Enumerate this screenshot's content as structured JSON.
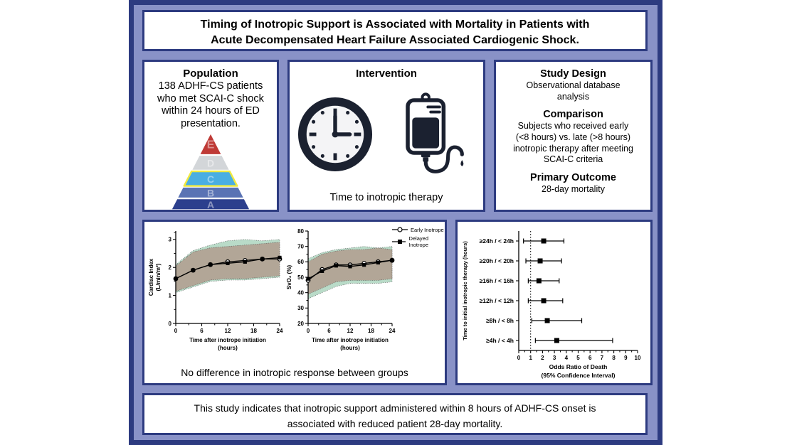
{
  "colors": {
    "background": "#8992c7",
    "border_navy": "#2d3b80",
    "panel_bg": "#ffffff",
    "band_green": "#b9dbc8",
    "band_tan": "#b19e8f",
    "icon_dark": "#1b2130",
    "pyramid_highlight": "#f1e93f"
  },
  "header": {
    "title": "Timing of Inotropic Support is Associated with Mortality in Patients with\nAcute Decompensated Heart Failure Associated Cardiogenic Shock."
  },
  "population": {
    "heading": "Population",
    "body": "138 ADHF-CS patients\nwho met SCAI-C shock\nwithin 24 hours of ED\npresentation.",
    "pyramid_levels": [
      {
        "label": "E",
        "color": "#bf3a36",
        "highlighted": false
      },
      {
        "label": "D",
        "color": "#d3d6d9",
        "highlighted": false
      },
      {
        "label": "C",
        "color": "#4aaee2",
        "highlighted": true
      },
      {
        "label": "B",
        "color": "#5a73b4",
        "highlighted": false
      },
      {
        "label": "A",
        "color": "#2c3f8d",
        "highlighted": false
      }
    ]
  },
  "intervention": {
    "heading": "Intervention",
    "caption": "Time to inotropic therapy",
    "icons": [
      "clock-icon",
      "iv-bag-icon"
    ]
  },
  "study": {
    "sections": [
      {
        "heading": "Study Design",
        "body": "Observational database\nanalysis"
      },
      {
        "heading": "Comparison",
        "body": "Subjects  who received  early\n(<8 hours) vs. late (>8 hours)\ninotropic therapy after meeting\nSCAI-C criteria"
      },
      {
        "heading": "Primary Outcome",
        "body": "28-day mortality"
      }
    ]
  },
  "legend": {
    "items": [
      {
        "label": "Early Inotrope",
        "marker": "circle-open"
      },
      {
        "label": "Delayed Inotrope",
        "marker": "square-filled"
      }
    ]
  },
  "charts_caption": "No difference in inotropic response between groups",
  "chart_data": [
    {
      "type": "line",
      "name": "cardiac-index",
      "xlabel_lines": [
        "Time after inotrope initiation",
        "(hours)"
      ],
      "ylabel_lines": [
        "Cardiac Index",
        "(L/min/m²)"
      ],
      "xlim": [
        0,
        24
      ],
      "ylim": [
        0,
        3.3
      ],
      "xticks": [
        0,
        6,
        12,
        18,
        24
      ],
      "xminor": [
        3,
        9,
        15,
        21
      ],
      "yticks": [
        0,
        1,
        2,
        3
      ],
      "yminor": [
        0.5,
        1.5,
        2.5,
        3.25
      ],
      "x": [
        0,
        4,
        8,
        12,
        16,
        20,
        24
      ],
      "series": [
        {
          "name": "Early Inotrope",
          "marker": "circle-open",
          "values": [
            1.6,
            1.9,
            2.1,
            2.2,
            2.25,
            2.3,
            2.3
          ],
          "band_color": "#b9dbc8",
          "band_upper": [
            2.1,
            2.6,
            2.8,
            2.95,
            3.0,
            2.95,
            3.0
          ],
          "band_lower": [
            1.1,
            1.3,
            1.5,
            1.55,
            1.55,
            1.6,
            1.65
          ]
        },
        {
          "name": "Delayed Inotrope",
          "marker": "square-filled",
          "values": [
            1.6,
            1.9,
            2.1,
            2.15,
            2.2,
            2.3,
            2.35
          ],
          "band_color": "#b19e8f",
          "band_upper": [
            2.05,
            2.55,
            2.7,
            2.75,
            2.8,
            2.85,
            2.9
          ],
          "band_lower": [
            1.15,
            1.35,
            1.55,
            1.6,
            1.6,
            1.65,
            1.7
          ]
        }
      ],
      "layout": {
        "margins": {
          "l": 40,
          "r": 10,
          "t": 10,
          "b": 46
        },
        "grid": false
      }
    },
    {
      "type": "line",
      "name": "svo2",
      "xlabel_lines": [
        "Time after inotrope initiation",
        "(hours)"
      ],
      "ylabel_lines": [
        "SvO₂ (%)"
      ],
      "xlim": [
        0,
        24
      ],
      "ylim": [
        20,
        80
      ],
      "xticks": [
        0,
        6,
        12,
        18,
        24
      ],
      "xminor": [
        3,
        9,
        15,
        21
      ],
      "yticks": [
        20,
        30,
        40,
        50,
        60,
        70,
        80
      ],
      "yminor": [
        25,
        35,
        45,
        55,
        65,
        75
      ],
      "x": [
        0,
        4,
        8,
        12,
        16,
        20,
        24
      ],
      "series": [
        {
          "name": "Early Inotrope",
          "marker": "circle-open",
          "values": [
            48,
            55,
            58,
            58,
            59,
            60,
            61
          ],
          "band_color": "#b9dbc8",
          "band_upper": [
            62,
            66,
            68,
            69,
            70,
            69,
            70
          ],
          "band_lower": [
            36,
            40,
            44,
            46,
            46,
            46,
            47
          ]
        },
        {
          "name": "Delayed Inotrope",
          "marker": "square-filled",
          "values": [
            49,
            54,
            57.5,
            57,
            58,
            59.5,
            61
          ],
          "band_color": "#b19e8f",
          "band_upper": [
            60,
            65,
            67,
            68,
            68,
            69,
            68
          ],
          "band_lower": [
            39,
            43,
            47,
            48,
            48,
            48,
            49
          ]
        }
      ],
      "layout": {
        "margins": {
          "l": 32,
          "r": 10,
          "t": 10,
          "b": 46
        },
        "grid": false
      }
    },
    {
      "type": "forest",
      "name": "odds-ratio-of-death",
      "xlabel_lines": [
        "Odds Ratio of Death",
        "(95% Confidence Interval)"
      ],
      "ylabel": "Time to initial inotropic therapy (hours)",
      "categories": [
        "≥24h / < 24h",
        "≥20h / < 20h",
        "≥16h / < 16h",
        "≥12h / < 12h",
        "≥8h / < 8h",
        "≥4h / < 4h"
      ],
      "estimates": [
        2.1,
        1.8,
        1.7,
        2.1,
        2.4,
        3.2
      ],
      "ci_low": [
        0.4,
        0.6,
        0.8,
        0.8,
        1.1,
        1.4
      ],
      "ci_high": [
        3.8,
        3.6,
        3.4,
        3.7,
        5.3,
        7.9
      ],
      "xlim": [
        0,
        10
      ],
      "xticks": [
        0,
        1,
        2,
        3,
        4,
        5,
        6,
        7,
        8,
        9,
        10
      ],
      "reference_line": 1,
      "layout": {
        "margins": {
          "l": 84,
          "r": 16,
          "t": 10,
          "b": 46
        },
        "grid": false
      }
    }
  ],
  "footer": {
    "text": "This study indicates that inotropic support administered within 8 hours of ADHF-CS onset is\nassociated with reduced patient 28-day mortality."
  }
}
